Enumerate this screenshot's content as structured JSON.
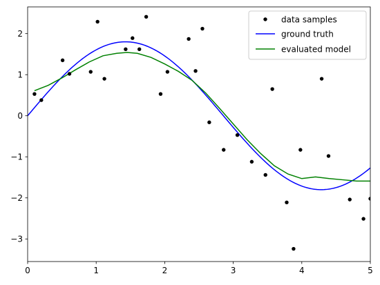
{
  "chart_data": {
    "type": "line",
    "xlim": [
      0,
      5
    ],
    "ylim": [
      -3.55,
      2.65
    ],
    "xticks": [
      0,
      1,
      2,
      3,
      4,
      5
    ],
    "yticks": [
      -3,
      -2,
      -1,
      0,
      1,
      2
    ],
    "xtick_labels": [
      "0",
      "1",
      "2",
      "3",
      "4",
      "5"
    ],
    "ytick_labels": [
      "−3",
      "−2",
      "−1",
      "0",
      "1",
      "2"
    ],
    "grid": false,
    "legend_position": "top-right",
    "legend": [
      "data samples",
      "ground truth",
      "evaluated model"
    ],
    "series": [
      {
        "name": "data samples",
        "kind": "scatter",
        "color": "#000000",
        "points": [
          [
            0.1,
            0.53
          ],
          [
            0.2,
            0.38
          ],
          [
            0.51,
            1.35
          ],
          [
            0.61,
            1.02
          ],
          [
            0.92,
            1.07
          ],
          [
            1.02,
            2.29
          ],
          [
            1.12,
            0.9
          ],
          [
            1.43,
            1.62
          ],
          [
            1.53,
            1.89
          ],
          [
            1.63,
            1.62
          ],
          [
            1.73,
            2.41
          ],
          [
            1.94,
            0.53
          ],
          [
            2.04,
            1.07
          ],
          [
            2.35,
            1.87
          ],
          [
            2.45,
            1.09
          ],
          [
            2.55,
            2.12
          ],
          [
            2.65,
            -0.16
          ],
          [
            2.86,
            -0.83
          ],
          [
            3.06,
            -0.47
          ],
          [
            3.27,
            -1.12
          ],
          [
            3.47,
            -1.44
          ],
          [
            3.57,
            0.65
          ],
          [
            3.78,
            -2.11
          ],
          [
            3.88,
            -3.24
          ],
          [
            3.98,
            -0.83
          ],
          [
            4.29,
            0.9
          ],
          [
            4.39,
            -0.98
          ],
          [
            4.7,
            -2.04
          ],
          [
            4.9,
            -2.51
          ],
          [
            5.0,
            -2.02
          ]
        ]
      },
      {
        "name": "ground truth",
        "kind": "function",
        "color": "#0000ff",
        "formula": "1.8*sin(1.1*x)",
        "amplitude": 1.8,
        "frequency": 1.1
      },
      {
        "name": "evaluated model",
        "kind": "line",
        "color": "#008000",
        "points": [
          [
            0.1,
            0.61
          ],
          [
            0.3,
            0.74
          ],
          [
            0.5,
            0.92
          ],
          [
            0.7,
            1.12
          ],
          [
            0.9,
            1.31
          ],
          [
            1.1,
            1.46
          ],
          [
            1.3,
            1.52
          ],
          [
            1.45,
            1.54
          ],
          [
            1.6,
            1.52
          ],
          [
            1.8,
            1.42
          ],
          [
            2.0,
            1.26
          ],
          [
            2.2,
            1.08
          ],
          [
            2.4,
            0.86
          ],
          [
            2.6,
            0.55
          ],
          [
            2.8,
            0.18
          ],
          [
            3.0,
            -0.2
          ],
          [
            3.2,
            -0.58
          ],
          [
            3.4,
            -0.92
          ],
          [
            3.6,
            -1.22
          ],
          [
            3.8,
            -1.42
          ],
          [
            4.0,
            -1.53
          ],
          [
            4.2,
            -1.49
          ],
          [
            4.4,
            -1.53
          ],
          [
            4.6,
            -1.56
          ],
          [
            4.8,
            -1.59
          ],
          [
            5.0,
            -1.59
          ]
        ]
      }
    ]
  }
}
